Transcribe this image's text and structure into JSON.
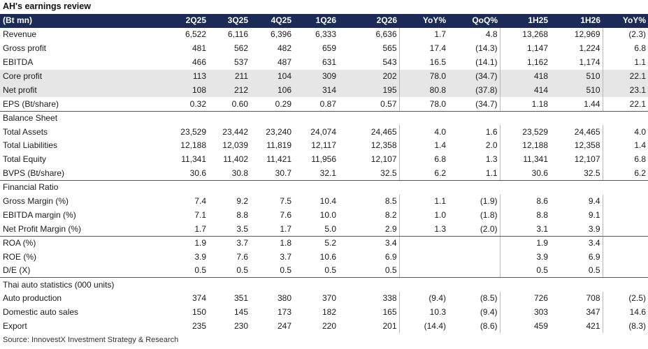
{
  "title": "AH's earnings review",
  "header": [
    "(Bt mn)",
    "2Q25",
    "3Q25",
    "4Q25",
    "1Q26",
    "2Q26",
    "YoY%",
    "QoQ%",
    "1H25",
    "1H26",
    "YoY%"
  ],
  "rows": [
    {
      "label": "Revenue",
      "values": [
        "6,522",
        "6,116",
        "6,396",
        "6,333",
        "6,636",
        "1.7",
        "4.8",
        "13,268",
        "12,969",
        "(2.3)"
      ]
    },
    {
      "label": "Gross profit",
      "values": [
        "481",
        "562",
        "482",
        "659",
        "565",
        "17.4",
        "(14.3)",
        "1,147",
        "1,224",
        "6.8"
      ]
    },
    {
      "label": "EBITDA",
      "values": [
        "466",
        "537",
        "487",
        "631",
        "543",
        "16.5",
        "(14.1)",
        "1,162",
        "1,174",
        "1.1"
      ]
    },
    {
      "label": "Core profit",
      "values": [
        "113",
        "211",
        "104",
        "309",
        "202",
        "78.0",
        "(34.7)",
        "418",
        "510",
        "22.1"
      ]
    },
    {
      "label": "Net profit",
      "values": [
        "108",
        "212",
        "106",
        "314",
        "195",
        "80.8",
        "(37.8)",
        "414",
        "510",
        "23.1"
      ]
    },
    {
      "label": "EPS (Bt/share)",
      "values": [
        "0.32",
        "0.60",
        "0.29",
        "0.87",
        "0.57",
        "78.0",
        "(34.7)",
        "1.18",
        "1.44",
        "22.1"
      ]
    },
    {
      "label": "Balance Sheet",
      "values": [
        "",
        "",
        "",
        "",
        "",
        "",
        "",
        "",
        "",
        ""
      ]
    },
    {
      "label": "Total Assets",
      "values": [
        "23,529",
        "23,442",
        "23,240",
        "24,074",
        "24,465",
        "4.0",
        "1.6",
        "23,529",
        "24,465",
        "4.0"
      ]
    },
    {
      "label": "Total Liabilities",
      "values": [
        "12,188",
        "12,039",
        "11,819",
        "12,117",
        "12,358",
        "1.4",
        "2.0",
        "12,188",
        "12,358",
        "1.4"
      ]
    },
    {
      "label": "Total Equity",
      "values": [
        "11,341",
        "11,402",
        "11,421",
        "11,956",
        "12,107",
        "6.8",
        "1.3",
        "11,341",
        "12,107",
        "6.8"
      ]
    },
    {
      "label": "BVPS (Bt/share)",
      "values": [
        "30.6",
        "30.8",
        "30.7",
        "32.1",
        "32.5",
        "6.2",
        "1.1",
        "30.6",
        "32.5",
        "6.2"
      ]
    },
    {
      "label": "Financial Ratio",
      "values": [
        "",
        "",
        "",
        "",
        "",
        "",
        "",
        "",
        "",
        ""
      ]
    },
    {
      "label": "Gross Margin (%)",
      "values": [
        "7.4",
        "9.2",
        "7.5",
        "10.4",
        "8.5",
        "1.1",
        "(1.9)",
        "8.6",
        "9.4",
        ""
      ]
    },
    {
      "label": "EBITDA margin (%)",
      "values": [
        "7.1",
        "8.8",
        "7.6",
        "10.0",
        "8.2",
        "1.0",
        "(1.8)",
        "8.8",
        "9.1",
        ""
      ]
    },
    {
      "label": "Net Profit Margin (%)",
      "values": [
        "1.7",
        "3.5",
        "1.7",
        "5.0",
        "2.9",
        "1.3",
        "(2.0)",
        "3.1",
        "3.9",
        ""
      ]
    },
    {
      "label": "ROA (%)",
      "values": [
        "1.9",
        "3.7",
        "1.8",
        "5.2",
        "3.4",
        "",
        "",
        "1.9",
        "3.4",
        ""
      ]
    },
    {
      "label": "ROE (%)",
      "values": [
        "3.9",
        "7.6",
        "3.7",
        "10.6",
        "6.9",
        "",
        "",
        "3.9",
        "6.9",
        ""
      ]
    },
    {
      "label": "D/E (X)",
      "values": [
        "0.5",
        "0.5",
        "0.5",
        "0.5",
        "0.5",
        "",
        "",
        "0.5",
        "0.5",
        ""
      ]
    },
    {
      "label": "Thai auto statistics (000 units)",
      "values": [
        "",
        "",
        "",
        "",
        "",
        "",
        "",
        "",
        "",
        ""
      ]
    },
    {
      "label": "Auto production",
      "values": [
        "374",
        "351",
        "380",
        "370",
        "338",
        "(9.4)",
        "(8.5)",
        "726",
        "708",
        "(2.5)"
      ]
    },
    {
      "label": "Domestic auto sales",
      "values": [
        "150",
        "145",
        "173",
        "182",
        "165",
        "10.3",
        "(9.4)",
        "303",
        "347",
        "14.6"
      ]
    },
    {
      "label": "Export",
      "values": [
        "235",
        "230",
        "247",
        "220",
        "201",
        "(14.4)",
        "(8.6)",
        "459",
        "421",
        "(8.3)"
      ]
    }
  ],
  "source": "Source: InnovestX Investment Strategy & Research",
  "colors": {
    "header_bg": "#1c2a57",
    "header_text": "#ffffff",
    "highlight_bg": "#e6e6e6"
  }
}
